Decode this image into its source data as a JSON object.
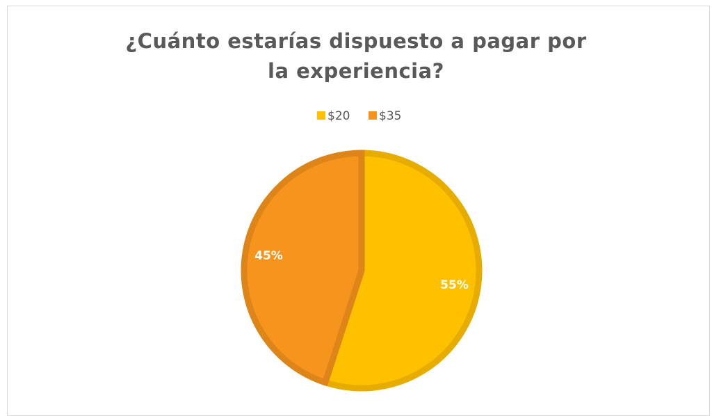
{
  "chart_data": {
    "type": "pie",
    "title": "¿Cuánto estarías dispuesto a pagar por la experiencia?",
    "categories": [
      "$20",
      "$35"
    ],
    "values": [
      55,
      45
    ],
    "value_labels": [
      "55%",
      "45%"
    ],
    "colors": [
      "#ffc000",
      "#f7941d"
    ],
    "legend": "top"
  }
}
